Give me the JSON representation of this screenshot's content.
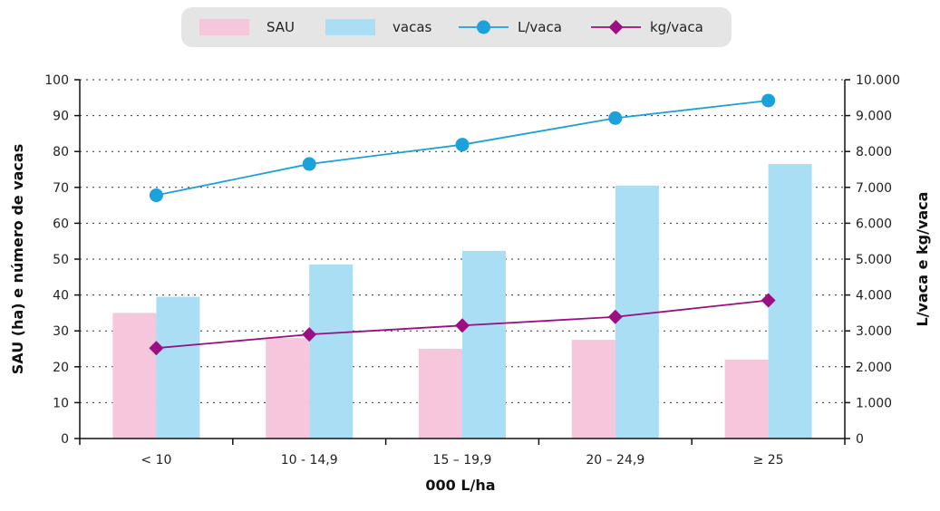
{
  "chart_data": {
    "type": "bar",
    "categories": [
      "< 10",
      "10 - 14,9",
      "15 – 19,9",
      "20 – 24,9",
      "≥ 25"
    ],
    "series": [
      {
        "name": "SAU",
        "axis": "left",
        "kind": "bar",
        "color": "#f6c6dc",
        "values": [
          35,
          28,
          25,
          27.5,
          22
        ]
      },
      {
        "name": "vacas",
        "axis": "left",
        "kind": "bar",
        "color": "#a9def5",
        "values": [
          39.5,
          48.5,
          52.3,
          70.5,
          76.5
        ]
      },
      {
        "name": "L/vaca",
        "axis": "right",
        "kind": "line",
        "marker": "circle",
        "color": "#1ba1db",
        "values": [
          6780,
          7650,
          8190,
          8930,
          9420
        ]
      },
      {
        "name": "kg/vaca",
        "axis": "right",
        "kind": "line",
        "marker": "diamond",
        "color": "#9b0f82",
        "values": [
          2520,
          2900,
          3150,
          3390,
          3850
        ]
      }
    ],
    "xlabel": "000 L/ha",
    "ylabel": "SAU (ha) e número de vacas",
    "y2label": "L/vaca e kg/vaca",
    "ylim": [
      0,
      100
    ],
    "y_ticks": [
      "0",
      "10",
      "20",
      "30",
      "40",
      "50",
      "60",
      "70",
      "80",
      "90",
      "100"
    ],
    "y2lim": [
      0,
      10000
    ],
    "y2_ticks": [
      "0",
      "1.000",
      "2.000",
      "3.000",
      "4.000",
      "5.000",
      "6.000",
      "7.000",
      "8.000",
      "9.000",
      "10.000"
    ],
    "grid": "dotted horizontal",
    "legend": "top-center"
  }
}
